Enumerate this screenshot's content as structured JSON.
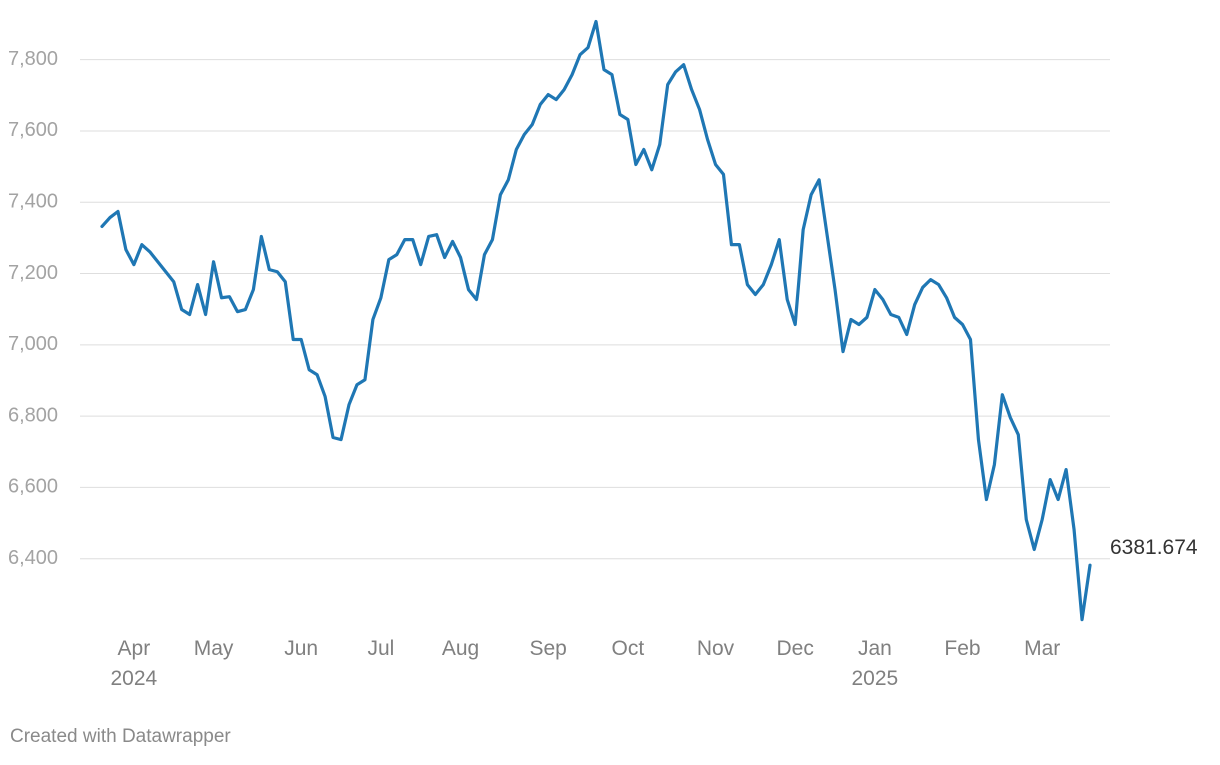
{
  "chart_data": {
    "type": "line",
    "color": "#1f77b4",
    "grid": true,
    "credit": "Created with Datawrapper",
    "ylim": [
      6200,
      7900
    ],
    "yticks": [
      {
        "value": 6400,
        "label": "6,400"
      },
      {
        "value": 6600,
        "label": "6,600"
      },
      {
        "value": 6800,
        "label": "6,800"
      },
      {
        "value": 7000,
        "label": "7,000"
      },
      {
        "value": 7200,
        "label": "7,200"
      },
      {
        "value": 7400,
        "label": "7,400"
      },
      {
        "value": 7600,
        "label": "7,600"
      },
      {
        "value": 7800,
        "label": "7,800"
      }
    ],
    "categories": [
      null,
      null,
      null,
      null,
      "Apr\n2024",
      null,
      null,
      null,
      null,
      null,
      null,
      null,
      null,
      null,
      "May",
      null,
      null,
      null,
      null,
      null,
      null,
      null,
      null,
      null,
      null,
      "Jun",
      null,
      null,
      null,
      null,
      null,
      null,
      null,
      null,
      null,
      "Jul",
      null,
      null,
      null,
      null,
      null,
      null,
      null,
      null,
      null,
      "Aug",
      null,
      null,
      null,
      null,
      null,
      null,
      null,
      null,
      null,
      null,
      "Sep",
      null,
      null,
      null,
      null,
      null,
      null,
      null,
      null,
      null,
      "Oct",
      null,
      null,
      null,
      null,
      null,
      null,
      null,
      null,
      null,
      null,
      "Nov",
      null,
      null,
      null,
      null,
      null,
      null,
      null,
      null,
      null,
      "Dec",
      null,
      null,
      null,
      null,
      null,
      null,
      null,
      null,
      null,
      "Jan\n2025",
      null,
      null,
      null,
      null,
      null,
      null,
      null,
      null,
      null,
      null,
      "Feb",
      null,
      null,
      null,
      null,
      null,
      null,
      null,
      null,
      null,
      "Mar",
      null,
      null,
      null,
      null,
      null,
      null
    ],
    "values": [
      7332,
      7357,
      7374,
      7267,
      7225,
      7281,
      7261,
      7233,
      7205,
      7177,
      7099,
      7085,
      7169,
      7085,
      7233,
      7132,
      7135,
      7093,
      7099,
      7155,
      7304,
      7211,
      7205,
      7177,
      7015,
      7015,
      6930,
      6916,
      6855,
      6740,
      6734,
      6832,
      6888,
      6902,
      7071,
      7132,
      7239,
      7253,
      7295,
      7295,
      7225,
      7304,
      7309,
      7245,
      7290,
      7245,
      7155,
      7127,
      7253,
      7295,
      7421,
      7463,
      7548,
      7590,
      7618,
      7674,
      7702,
      7688,
      7716,
      7758,
      7814,
      7834,
      7907,
      7772,
      7758,
      7646,
      7632,
      7506,
      7548,
      7491,
      7562,
      7730,
      7766,
      7786,
      7716,
      7660,
      7576,
      7506,
      7478,
      7281,
      7281,
      7169,
      7141,
      7169,
      7225,
      7295,
      7127,
      7057,
      7323,
      7421,
      7463,
      7309,
      7155,
      6981,
      7071,
      7057,
      7077,
      7155,
      7127,
      7085,
      7077,
      7029,
      7113,
      7161,
      7183,
      7169,
      7132,
      7077,
      7057,
      7015,
      6734,
      6566,
      6664,
      6860,
      6796,
      6748,
      6510,
      6426,
      6510,
      6622,
      6566,
      6650,
      6482,
      6229,
      6381.674
    ]
  }
}
